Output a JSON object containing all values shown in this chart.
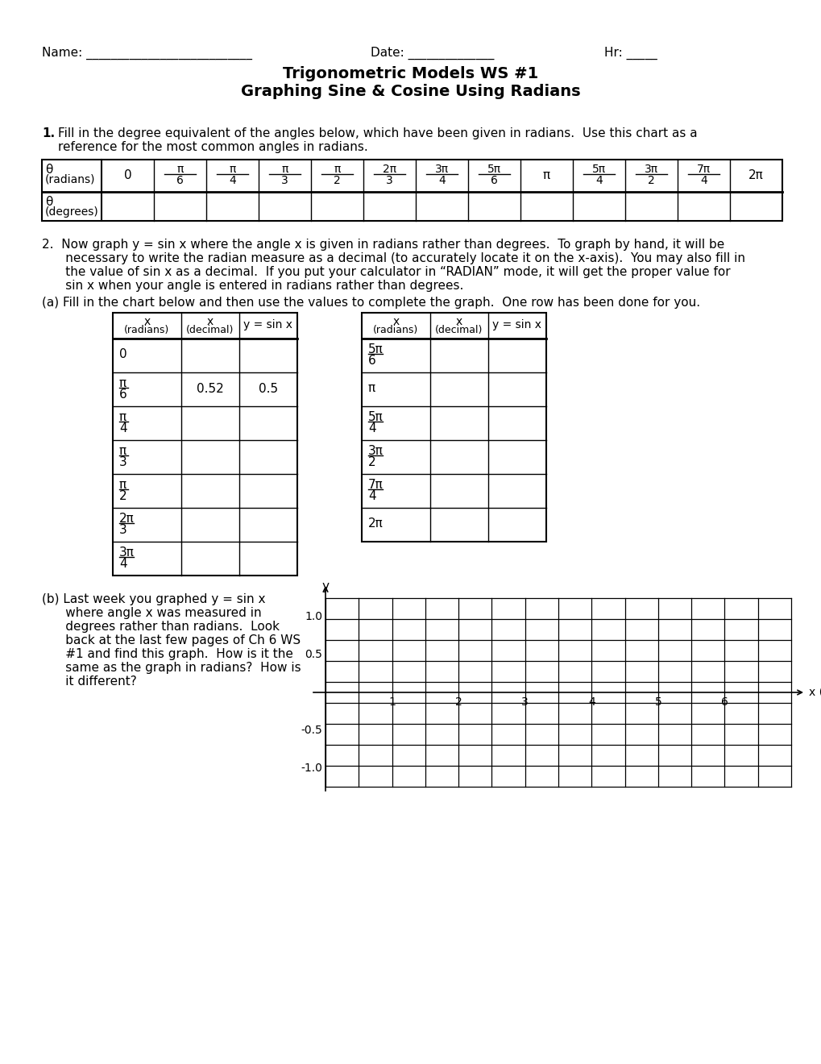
{
  "title_line1": "Trigonometric Models WS #1",
  "title_line2": "Graphing Sine & Cosine Using Radians",
  "bg_color": "#ffffff",
  "text_color": "#000000",
  "q2_text_lines": [
    "2.  Now graph y = sin x where the angle x is given in radians rather than degrees.  To graph by hand, it will be",
    "      necessary to write the radian measure as a decimal (to accurately locate it on the x-axis).  You may also fill in",
    "      the value of sin x as a decimal.  If you put your calculator in “RADIAN” mode, it will get the proper value for",
    "      sin x when your angle is entered in radians rather than degrees."
  ],
  "qa_text": "(a) Fill in the chart below and then use the values to complete the graph.  One row has been done for you.",
  "qb_text_lines": [
    "(b) Last week you graphed y = sin x",
    "      where angle x was measured in",
    "      degrees rather than radians.  Look",
    "      back at the last few pages of Ch 6 WS",
    "      #1 and find this graph.  How is it the",
    "      same as the graph in radians?  How is",
    "      it different?"
  ],
  "graph_x_label": "x (radians)",
  "graph_y_label": "y"
}
